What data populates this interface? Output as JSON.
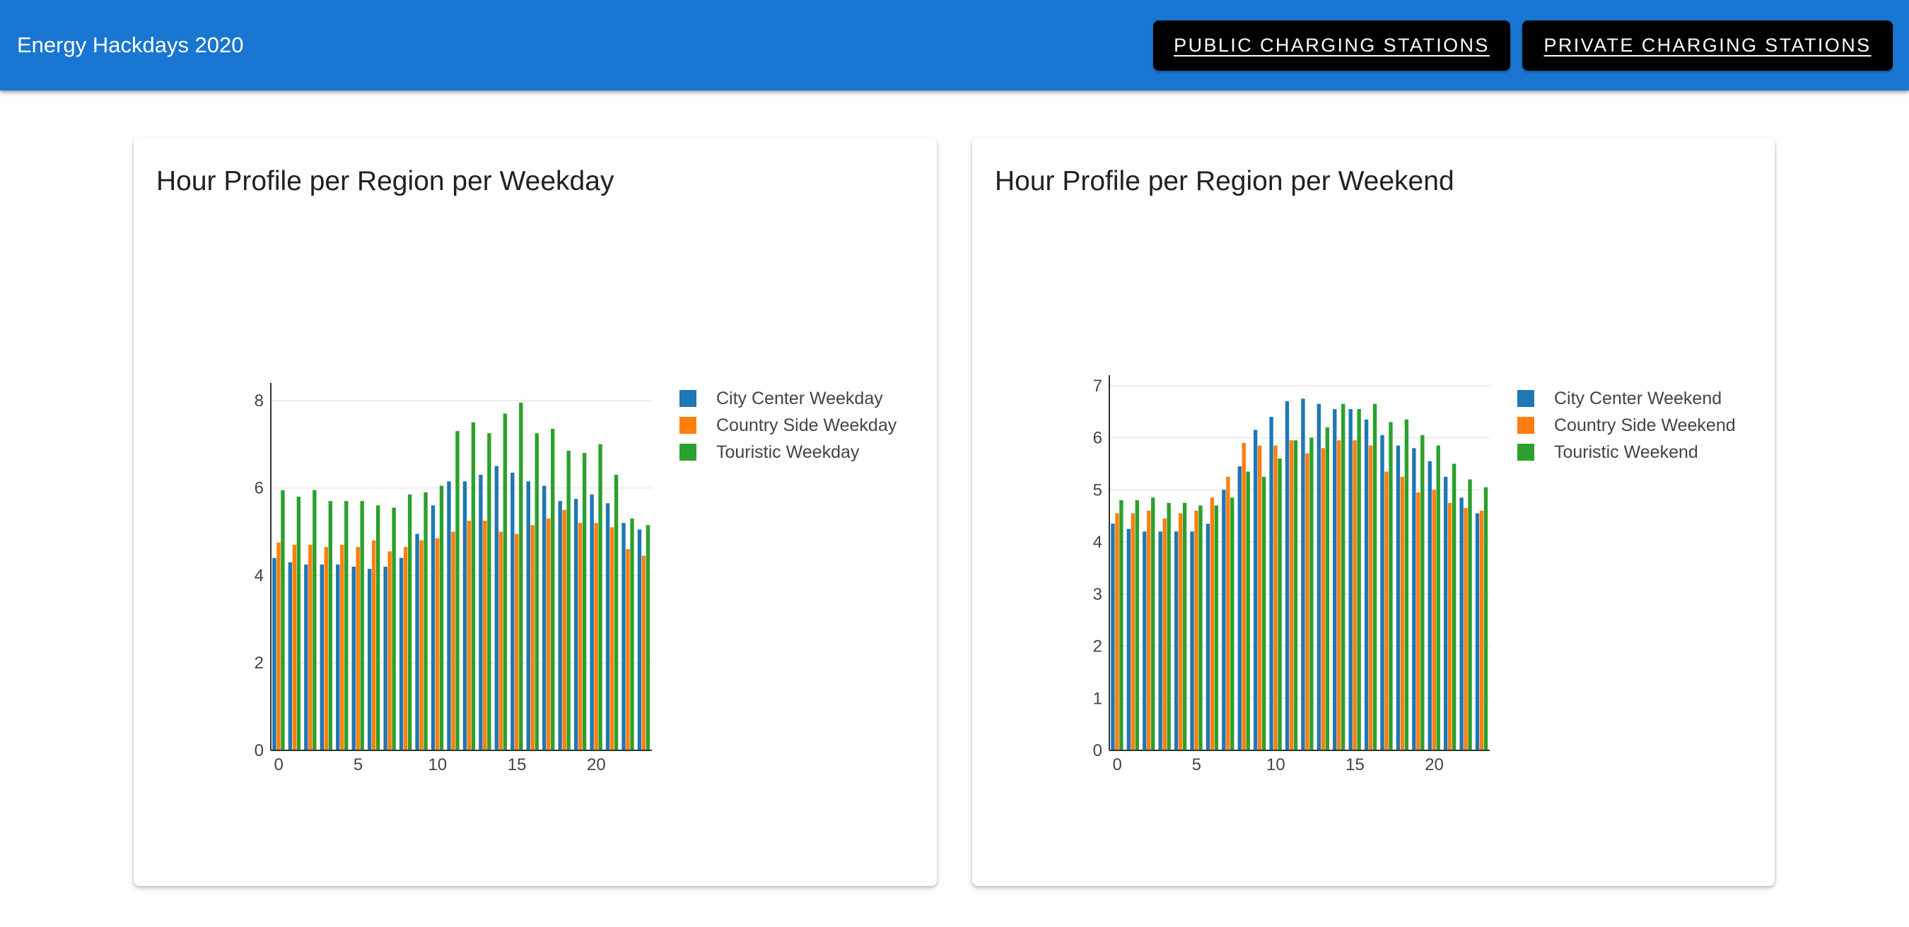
{
  "app": {
    "title": "Energy Hackdays 2020",
    "nav": {
      "public_label": "PUBLIC CHARGING STATIONS",
      "private_label": "PRIVATE CHARGING STATIONS"
    }
  },
  "colors": {
    "appbar": "#1976d2",
    "series": [
      "#1f77b4",
      "#ff7f0e",
      "#2ca02c"
    ]
  },
  "cards": [
    {
      "title": "Hour Profile per Region per Weekday",
      "chart_data": {
        "type": "bar",
        "title": "Hour Profile per Region per Weekday",
        "xlabel": "",
        "ylabel": "",
        "xlim": [
          -0.5,
          23.5
        ],
        "ylim": [
          0,
          8.4
        ],
        "yticks": [
          0,
          2,
          4,
          6,
          8
        ],
        "xticks": [
          0,
          5,
          10,
          15,
          20
        ],
        "legend_position": "right",
        "x": [
          0,
          1,
          2,
          3,
          4,
          5,
          6,
          7,
          8,
          9,
          10,
          11,
          12,
          13,
          14,
          15,
          16,
          17,
          18,
          19,
          20,
          21,
          22,
          23
        ],
        "series": [
          {
            "name": "City Center Weekday",
            "values": [
              4.4,
              4.3,
              4.25,
              4.25,
              4.25,
              4.2,
              4.15,
              4.2,
              4.4,
              4.95,
              5.6,
              6.15,
              6.15,
              6.3,
              6.5,
              6.35,
              6.15,
              6.05,
              5.7,
              5.75,
              5.85,
              5.65,
              5.2,
              5.05
            ]
          },
          {
            "name": "Country Side Weekday",
            "values": [
              4.75,
              4.7,
              4.7,
              4.65,
              4.7,
              4.65,
              4.8,
              4.55,
              4.65,
              4.8,
              4.85,
              5.0,
              5.25,
              5.25,
              5.0,
              4.95,
              5.15,
              5.3,
              5.5,
              5.2,
              5.2,
              5.1,
              4.6,
              4.45
            ]
          },
          {
            "name": "Touristic Weekday",
            "values": [
              5.95,
              5.8,
              5.95,
              5.7,
              5.7,
              5.7,
              5.6,
              5.55,
              5.85,
              5.9,
              6.05,
              7.3,
              7.5,
              7.25,
              7.7,
              7.95,
              7.25,
              7.35,
              6.85,
              6.8,
              7.0,
              6.3,
              5.3,
              5.15
            ]
          }
        ]
      }
    },
    {
      "title": "Hour Profile per Region per Weekend",
      "chart_data": {
        "type": "bar",
        "title": "Hour Profile per Region per Weekend",
        "xlabel": "",
        "ylabel": "",
        "xlim": [
          -0.5,
          23.5
        ],
        "ylim": [
          0,
          7.2
        ],
        "yticks": [
          0,
          1,
          2,
          3,
          4,
          5,
          6,
          7
        ],
        "xticks": [
          0,
          5,
          10,
          15,
          20
        ],
        "legend_position": "right",
        "x": [
          0,
          1,
          2,
          3,
          4,
          5,
          6,
          7,
          8,
          9,
          10,
          11,
          12,
          13,
          14,
          15,
          16,
          17,
          18,
          19,
          20,
          21,
          22,
          23
        ],
        "series": [
          {
            "name": "City Center Weekend",
            "values": [
              4.35,
              4.25,
              4.2,
              4.2,
              4.2,
              4.2,
              4.35,
              5.0,
              5.45,
              6.15,
              6.4,
              6.7,
              6.75,
              6.65,
              6.55,
              6.55,
              6.35,
              6.05,
              5.85,
              5.8,
              5.55,
              5.25,
              4.85,
              4.55
            ]
          },
          {
            "name": "Country Side Weekend",
            "values": [
              4.55,
              4.55,
              4.6,
              4.45,
              4.55,
              4.6,
              4.85,
              5.25,
              5.9,
              5.85,
              5.85,
              5.95,
              5.7,
              5.8,
              5.95,
              5.95,
              5.85,
              5.35,
              5.25,
              4.95,
              5.0,
              4.75,
              4.65,
              4.6
            ]
          },
          {
            "name": "Touristic Weekend",
            "values": [
              4.8,
              4.8,
              4.85,
              4.75,
              4.75,
              4.7,
              4.7,
              4.85,
              5.35,
              5.25,
              5.6,
              5.95,
              6.0,
              6.2,
              6.65,
              6.55,
              6.65,
              6.3,
              6.35,
              6.05,
              5.85,
              5.5,
              5.2,
              5.05
            ]
          }
        ]
      }
    }
  ]
}
